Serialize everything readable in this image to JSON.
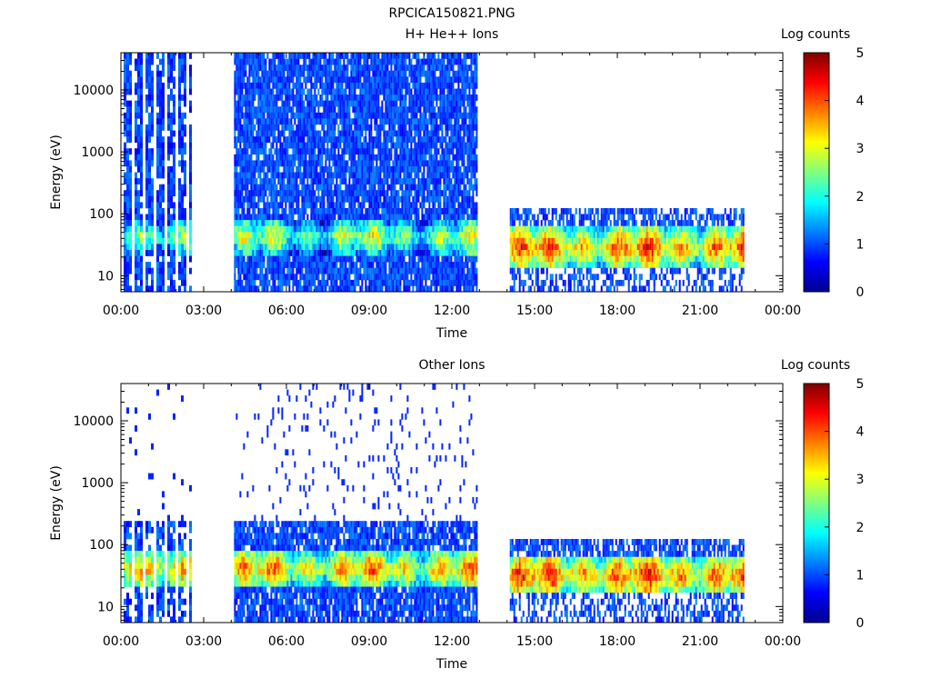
{
  "figure_title": "RPCICA150821.PNG",
  "chart_data": [
    {
      "type": "heatmap",
      "title": "H+ He++ Ions",
      "xlabel": "Time",
      "ylabel": "Energy (eV)",
      "x_ticks": [
        "00:00",
        "03:00",
        "06:00",
        "09:00",
        "12:00",
        "15:00",
        "18:00",
        "21:00",
        "00:00"
      ],
      "xlim_hours": [
        0,
        24
      ],
      "y_scale": "log",
      "ylim_eV": [
        5.5,
        40000
      ],
      "y_ticks": [
        {
          "value": 10,
          "label": "10"
        },
        {
          "value": 100,
          "label": "100"
        },
        {
          "value": 1000,
          "label": "1000"
        },
        {
          "value": 10000,
          "label": "10000"
        }
      ],
      "colorbar": {
        "label": "Log counts",
        "range": [
          0,
          5
        ],
        "ticks": [
          "0",
          "1",
          "2",
          "3",
          "4",
          "5"
        ]
      },
      "segments": [
        {
          "start_h": 0.1,
          "end_h": 2.5,
          "e_min": 5.5,
          "e_max": 40000,
          "band_center_eV": 42,
          "band_level": 2.0,
          "mode": "stripes",
          "bg_density": 0.85
        },
        {
          "start_h": 4.1,
          "end_h": 12.9,
          "e_min": 5.5,
          "e_max": 40000,
          "band_center_eV": 42,
          "band_level": 2.5,
          "mode": "dense",
          "bg_density": 0.9
        },
        {
          "start_h": 14.1,
          "end_h": 22.6,
          "e_min": 5.5,
          "e_max": 100,
          "band_center_eV": 28,
          "band_level": 3.6,
          "mode": "lowE",
          "bg_density": 0.7
        }
      ]
    },
    {
      "type": "heatmap",
      "title": "Other Ions",
      "xlabel": "Time",
      "ylabel": "Energy (eV)",
      "x_ticks": [
        "00:00",
        "03:00",
        "06:00",
        "09:00",
        "12:00",
        "15:00",
        "18:00",
        "21:00",
        "00:00"
      ],
      "xlim_hours": [
        0,
        24
      ],
      "y_scale": "log",
      "ylim_eV": [
        5.5,
        40000
      ],
      "y_ticks": [
        {
          "value": 10,
          "label": "10"
        },
        {
          "value": 100,
          "label": "100"
        },
        {
          "value": 1000,
          "label": "1000"
        },
        {
          "value": 10000,
          "label": "10000"
        }
      ],
      "colorbar": {
        "label": "Log counts",
        "range": [
          0,
          5
        ],
        "ticks": [
          "0",
          "1",
          "2",
          "3",
          "4",
          "5"
        ]
      },
      "segments": [
        {
          "start_h": 0.1,
          "end_h": 2.5,
          "e_min": 5.5,
          "e_max": 200,
          "band_center_eV": 40,
          "band_level": 3.0,
          "mode": "stripes",
          "bg_density": 0.75,
          "sparse_top": 0.04
        },
        {
          "start_h": 4.1,
          "end_h": 12.9,
          "e_min": 5.5,
          "e_max": 200,
          "band_center_eV": 40,
          "band_level": 3.3,
          "mode": "dense",
          "bg_density": 0.85,
          "sparse_top": 0.07
        },
        {
          "start_h": 14.1,
          "end_h": 22.6,
          "e_min": 5.5,
          "e_max": 100,
          "band_center_eV": 32,
          "band_level": 3.7,
          "mode": "lowE",
          "bg_density": 0.75
        }
      ]
    }
  ]
}
